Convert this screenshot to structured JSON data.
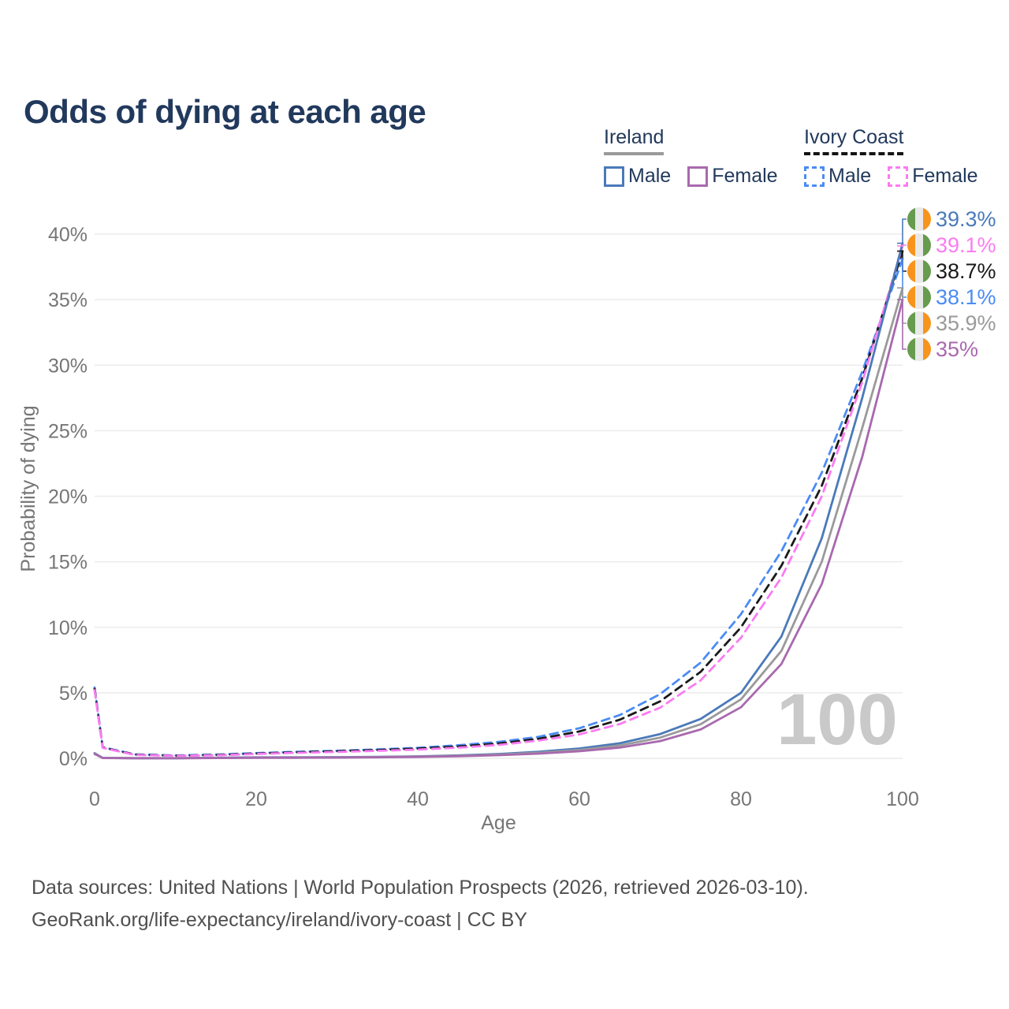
{
  "title": "Odds of dying at each age",
  "legend": {
    "groups": [
      {
        "id": "ireland",
        "label": "Ireland",
        "underline": "solid",
        "items": [
          {
            "id": "ireland_male",
            "label": "Male",
            "color": "#4a7ab9",
            "dashed": false
          },
          {
            "id": "ireland_female",
            "label": "Female",
            "color": "#a869ae",
            "dashed": false
          }
        ]
      },
      {
        "id": "ivory_coast",
        "label": "Ivory Coast",
        "underline": "dashed",
        "items": [
          {
            "id": "ivory_coast_male",
            "label": "Male",
            "color": "#4b8bf4",
            "dashed": true
          },
          {
            "id": "ivory_coast_female",
            "label": "Female",
            "color": "#fb7bf2",
            "dashed": true
          }
        ]
      }
    ]
  },
  "chart_data": {
    "type": "line",
    "title": "Odds of dying at each age",
    "xlabel": "Age",
    "ylabel": "Probability of dying",
    "xlim": [
      0,
      100
    ],
    "ylim": [
      0,
      40
    ],
    "x_ticks": [
      0,
      20,
      40,
      60,
      80,
      100
    ],
    "y_ticks": [
      0,
      5,
      10,
      15,
      20,
      25,
      30,
      35,
      40
    ],
    "y_tick_suffix": "%",
    "grid": "horizontal",
    "watermark": "100",
    "legend_position": "top-right",
    "ages": [
      0,
      1,
      5,
      10,
      15,
      20,
      25,
      30,
      35,
      40,
      45,
      50,
      55,
      60,
      65,
      70,
      75,
      80,
      85,
      90,
      95,
      100
    ],
    "flags": {
      "ireland": [
        "#679b4d",
        "#e9e9e9",
        "#f7941e"
      ],
      "ivory_coast": [
        "#f7941e",
        "#e9e9e9",
        "#679b4d"
      ]
    },
    "series": [
      {
        "id": "ivory_coast_male",
        "name": "Ivory Coast Male",
        "country": "ivory_coast",
        "color": "#4b8bf4",
        "dashed": true,
        "end_label": "38.1%",
        "label_color": "#4b8bf4",
        "values": [
          5.4,
          0.85,
          0.3,
          0.22,
          0.28,
          0.4,
          0.5,
          0.58,
          0.68,
          0.8,
          1.0,
          1.25,
          1.65,
          2.3,
          3.3,
          4.9,
          7.3,
          11.0,
          15.8,
          21.8,
          29.5,
          38.1
        ]
      },
      {
        "id": "ivory_coast_total",
        "name": "Ivory Coast",
        "country": "ivory_coast",
        "color": "#1a1a1a",
        "dashed": true,
        "end_label": "38.7%",
        "label_color": "#1a1a1a",
        "values": [
          5.3,
          0.82,
          0.28,
          0.2,
          0.25,
          0.36,
          0.46,
          0.54,
          0.63,
          0.74,
          0.9,
          1.13,
          1.5,
          2.05,
          2.95,
          4.35,
          6.6,
          10.0,
          14.7,
          20.8,
          29.0,
          38.7
        ]
      },
      {
        "id": "ivory_coast_female",
        "name": "Ivory Coast Female",
        "country": "ivory_coast",
        "color": "#fb7bf2",
        "dashed": true,
        "end_label": "39.1%",
        "label_color": "#fb7bf2",
        "values": [
          5.2,
          0.8,
          0.26,
          0.19,
          0.23,
          0.33,
          0.42,
          0.49,
          0.57,
          0.67,
          0.81,
          1.02,
          1.36,
          1.82,
          2.62,
          3.87,
          5.95,
          9.2,
          13.8,
          20.0,
          28.7,
          39.1
        ]
      },
      {
        "id": "ireland_male",
        "name": "Ireland Male",
        "country": "ireland",
        "color": "#4a7ab9",
        "dashed": false,
        "end_label": "39.3%",
        "label_color": "#4a7ab9",
        "values": [
          0.4,
          0.035,
          0.01,
          0.01,
          0.04,
          0.07,
          0.08,
          0.09,
          0.11,
          0.15,
          0.22,
          0.33,
          0.5,
          0.75,
          1.15,
          1.85,
          3.0,
          5.0,
          9.3,
          16.8,
          27.5,
          39.3
        ]
      },
      {
        "id": "ireland_total",
        "name": "Ireland",
        "country": "ireland",
        "color": "#9a9a9a",
        "dashed": false,
        "end_label": "35.9%",
        "label_color": "#9a9a9a",
        "values": [
          0.36,
          0.03,
          0.01,
          0.01,
          0.03,
          0.055,
          0.065,
          0.075,
          0.095,
          0.13,
          0.19,
          0.28,
          0.43,
          0.64,
          0.98,
          1.58,
          2.6,
          4.5,
          8.2,
          15.0,
          25.2,
          35.9
        ]
      },
      {
        "id": "ireland_female",
        "name": "Ireland Female",
        "country": "ireland",
        "color": "#a869ae",
        "dashed": false,
        "end_label": "35%",
        "label_color": "#a869ae",
        "values": [
          0.33,
          0.025,
          0.008,
          0.008,
          0.025,
          0.04,
          0.045,
          0.055,
          0.08,
          0.11,
          0.16,
          0.24,
          0.36,
          0.54,
          0.82,
          1.32,
          2.2,
          3.9,
          7.2,
          13.3,
          23.0,
          35.0
        ]
      }
    ],
    "label_order": [
      "ireland_male",
      "ivory_coast_female",
      "ivory_coast_total",
      "ivory_coast_male",
      "ireland_total",
      "ireland_female"
    ]
  },
  "footer": {
    "line1": "Data sources: United Nations | World Population Prospects (2026, retrieved 2026-03-10).",
    "line2": "GeoRank.org/life-expectancy/ireland/ivory-coast | CC BY"
  }
}
